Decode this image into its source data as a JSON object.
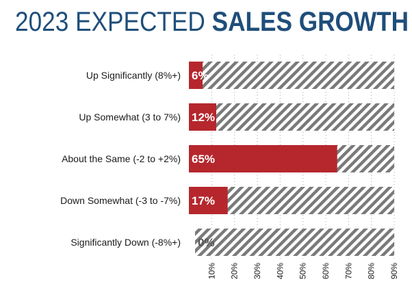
{
  "title": {
    "light": "2023 EXPECTED ",
    "bold": "SALES GROWTH"
  },
  "chart_data": {
    "type": "bar",
    "orientation": "horizontal",
    "title": "2023 EXPECTED SALES GROWTH",
    "categories": [
      "Up Significantly (8%+)",
      "Up Somewhat (3 to 7%)",
      "About the Same (-2 to +2%)",
      "Down Somewhat (-3 to -7%)",
      "Significantly Down (-8%+)"
    ],
    "values": [
      6,
      12,
      65,
      17,
      0
    ],
    "value_labels": [
      "6%",
      "12%",
      "65%",
      "17%",
      "0%"
    ],
    "xlim": [
      0,
      90
    ],
    "ticks": [
      10,
      20,
      30,
      40,
      50,
      60,
      70,
      80,
      90
    ],
    "tick_labels": [
      "10%",
      "20%",
      "30%",
      "40%",
      "50%",
      "60%",
      "70%",
      "80%",
      "90%"
    ],
    "grid": true,
    "colors": {
      "bar": "#b5272d",
      "hatch": "#7a7a7a",
      "grid": "#bbbbbb",
      "title": "#1f4e7a"
    }
  }
}
